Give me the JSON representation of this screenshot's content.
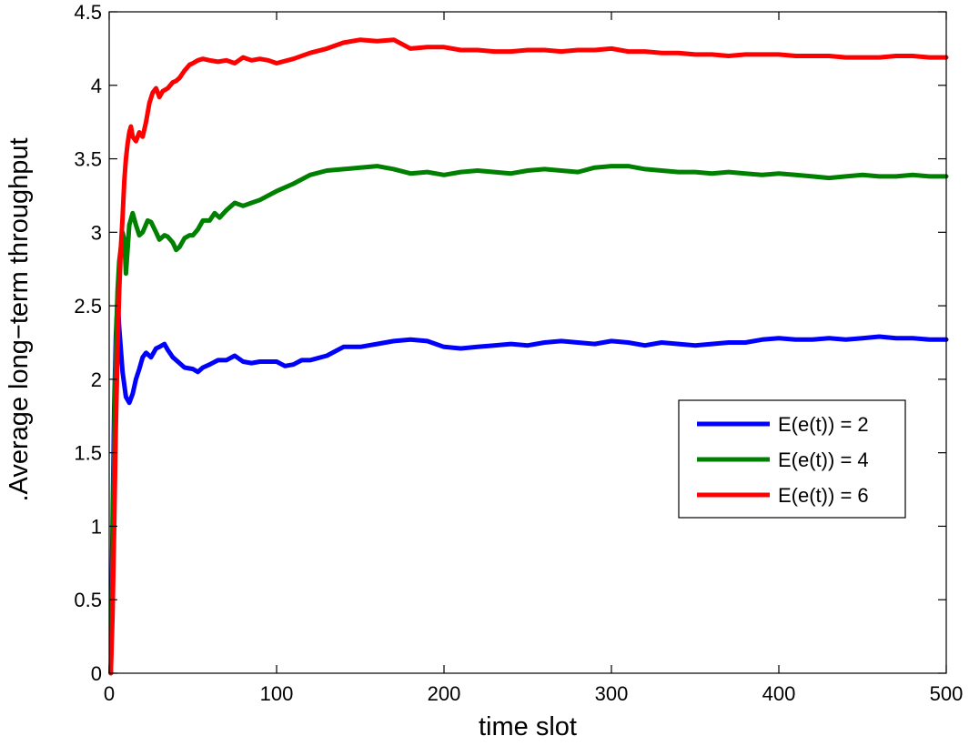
{
  "chart_data": {
    "type": "line",
    "title": "",
    "xlabel": "time slot",
    "ylabel": ".Average long−term throughput",
    "xlim": [
      0,
      500
    ],
    "ylim": [
      0,
      4.5
    ],
    "xticks": [
      0,
      100,
      200,
      300,
      400,
      500
    ],
    "yticks": [
      0,
      0.5,
      1,
      1.5,
      2,
      2.5,
      3,
      3.5,
      4,
      4.5
    ],
    "xtick_labels": [
      "0",
      "100",
      "200",
      "300",
      "400",
      "500"
    ],
    "ytick_labels": [
      "0",
      "0.5",
      "1",
      "1.5",
      "2",
      "2.5",
      "3",
      "3.5",
      "4",
      "4.5"
    ],
    "grid": false,
    "legend_position": "center-right",
    "series": [
      {
        "name": "E(e(t)) = 2",
        "color": "#0000ff",
        "x": [
          1,
          2,
          3,
          4,
          5,
          6,
          8,
          10,
          12,
          14,
          16,
          18,
          20,
          22,
          25,
          28,
          30,
          33,
          35,
          38,
          40,
          45,
          50,
          53,
          56,
          60,
          65,
          70,
          75,
          80,
          85,
          90,
          95,
          100,
          105,
          110,
          115,
          120,
          130,
          140,
          150,
          160,
          170,
          180,
          190,
          200,
          210,
          220,
          230,
          240,
          250,
          260,
          270,
          280,
          290,
          300,
          310,
          320,
          330,
          340,
          350,
          360,
          370,
          380,
          390,
          400,
          410,
          420,
          430,
          440,
          450,
          460,
          470,
          480,
          490,
          500
        ],
        "y": [
          0.0,
          1.0,
          1.8,
          2.3,
          2.55,
          2.35,
          2.05,
          1.88,
          1.84,
          1.9,
          2.0,
          2.07,
          2.15,
          2.18,
          2.15,
          2.21,
          2.22,
          2.24,
          2.2,
          2.15,
          2.13,
          2.08,
          2.07,
          2.05,
          2.08,
          2.1,
          2.13,
          2.13,
          2.16,
          2.12,
          2.11,
          2.12,
          2.12,
          2.12,
          2.09,
          2.1,
          2.13,
          2.13,
          2.16,
          2.22,
          2.22,
          2.24,
          2.26,
          2.27,
          2.26,
          2.22,
          2.21,
          2.22,
          2.23,
          2.24,
          2.23,
          2.25,
          2.26,
          2.25,
          2.24,
          2.26,
          2.25,
          2.23,
          2.25,
          2.24,
          2.23,
          2.24,
          2.25,
          2.25,
          2.27,
          2.28,
          2.27,
          2.27,
          2.28,
          2.27,
          2.28,
          2.29,
          2.28,
          2.28,
          2.27,
          2.27
        ]
      },
      {
        "name": "E(e(t)) = 4",
        "color": "#008000",
        "x": [
          1,
          2,
          3,
          4,
          5,
          6,
          7,
          8,
          9,
          10,
          12,
          14,
          16,
          18,
          20,
          23,
          25,
          28,
          30,
          33,
          35,
          38,
          40,
          42,
          45,
          48,
          50,
          53,
          56,
          60,
          63,
          66,
          70,
          75,
          80,
          85,
          90,
          95,
          100,
          110,
          120,
          130,
          140,
          150,
          160,
          170,
          180,
          190,
          200,
          210,
          220,
          230,
          240,
          250,
          260,
          270,
          280,
          290,
          300,
          310,
          320,
          330,
          340,
          350,
          360,
          370,
          380,
          390,
          400,
          410,
          420,
          430,
          440,
          450,
          460,
          470,
          480,
          490,
          500
        ],
        "y": [
          0.0,
          0.8,
          1.6,
          2.2,
          2.6,
          2.8,
          2.9,
          3.0,
          2.95,
          2.72,
          3.05,
          3.13,
          3.05,
          2.98,
          3.0,
          3.08,
          3.07,
          3.0,
          2.95,
          2.98,
          2.97,
          2.93,
          2.88,
          2.9,
          2.96,
          2.98,
          2.98,
          3.02,
          3.08,
          3.08,
          3.13,
          3.1,
          3.15,
          3.2,
          3.18,
          3.2,
          3.22,
          3.25,
          3.28,
          3.33,
          3.39,
          3.42,
          3.43,
          3.44,
          3.45,
          3.43,
          3.4,
          3.41,
          3.39,
          3.41,
          3.42,
          3.41,
          3.4,
          3.42,
          3.43,
          3.42,
          3.41,
          3.44,
          3.45,
          3.45,
          3.43,
          3.42,
          3.41,
          3.41,
          3.4,
          3.41,
          3.4,
          3.39,
          3.4,
          3.39,
          3.38,
          3.37,
          3.38,
          3.39,
          3.38,
          3.38,
          3.39,
          3.38,
          3.38
        ]
      },
      {
        "name": "E(e(t)) = 6",
        "color": "#ff0000",
        "x": [
          1,
          2,
          3,
          4,
          5,
          6,
          7,
          8,
          9,
          10,
          11,
          12,
          13,
          14,
          16,
          18,
          20,
          22,
          24,
          26,
          28,
          30,
          32,
          35,
          38,
          40,
          42,
          45,
          48,
          50,
          53,
          56,
          60,
          65,
          70,
          75,
          80,
          85,
          90,
          95,
          100,
          110,
          120,
          130,
          140,
          150,
          160,
          170,
          180,
          190,
          200,
          210,
          220,
          230,
          240,
          250,
          260,
          270,
          280,
          290,
          300,
          310,
          320,
          330,
          340,
          350,
          360,
          370,
          380,
          390,
          400,
          410,
          420,
          430,
          440,
          450,
          460,
          470,
          480,
          490,
          500
        ],
        "y": [
          0.0,
          0.4,
          1.0,
          1.7,
          2.2,
          2.6,
          2.9,
          3.1,
          3.35,
          3.5,
          3.6,
          3.68,
          3.72,
          3.65,
          3.62,
          3.68,
          3.65,
          3.75,
          3.88,
          3.95,
          3.98,
          3.92,
          3.96,
          3.98,
          4.02,
          4.03,
          4.05,
          4.1,
          4.14,
          4.15,
          4.17,
          4.18,
          4.17,
          4.16,
          4.17,
          4.15,
          4.19,
          4.17,
          4.18,
          4.17,
          4.15,
          4.18,
          4.22,
          4.25,
          4.29,
          4.31,
          4.3,
          4.31,
          4.25,
          4.26,
          4.26,
          4.24,
          4.24,
          4.23,
          4.23,
          4.24,
          4.24,
          4.23,
          4.24,
          4.24,
          4.25,
          4.23,
          4.23,
          4.22,
          4.22,
          4.21,
          4.21,
          4.2,
          4.21,
          4.21,
          4.21,
          4.2,
          4.2,
          4.2,
          4.19,
          4.19,
          4.19,
          4.2,
          4.2,
          4.19,
          4.19
        ]
      }
    ]
  }
}
